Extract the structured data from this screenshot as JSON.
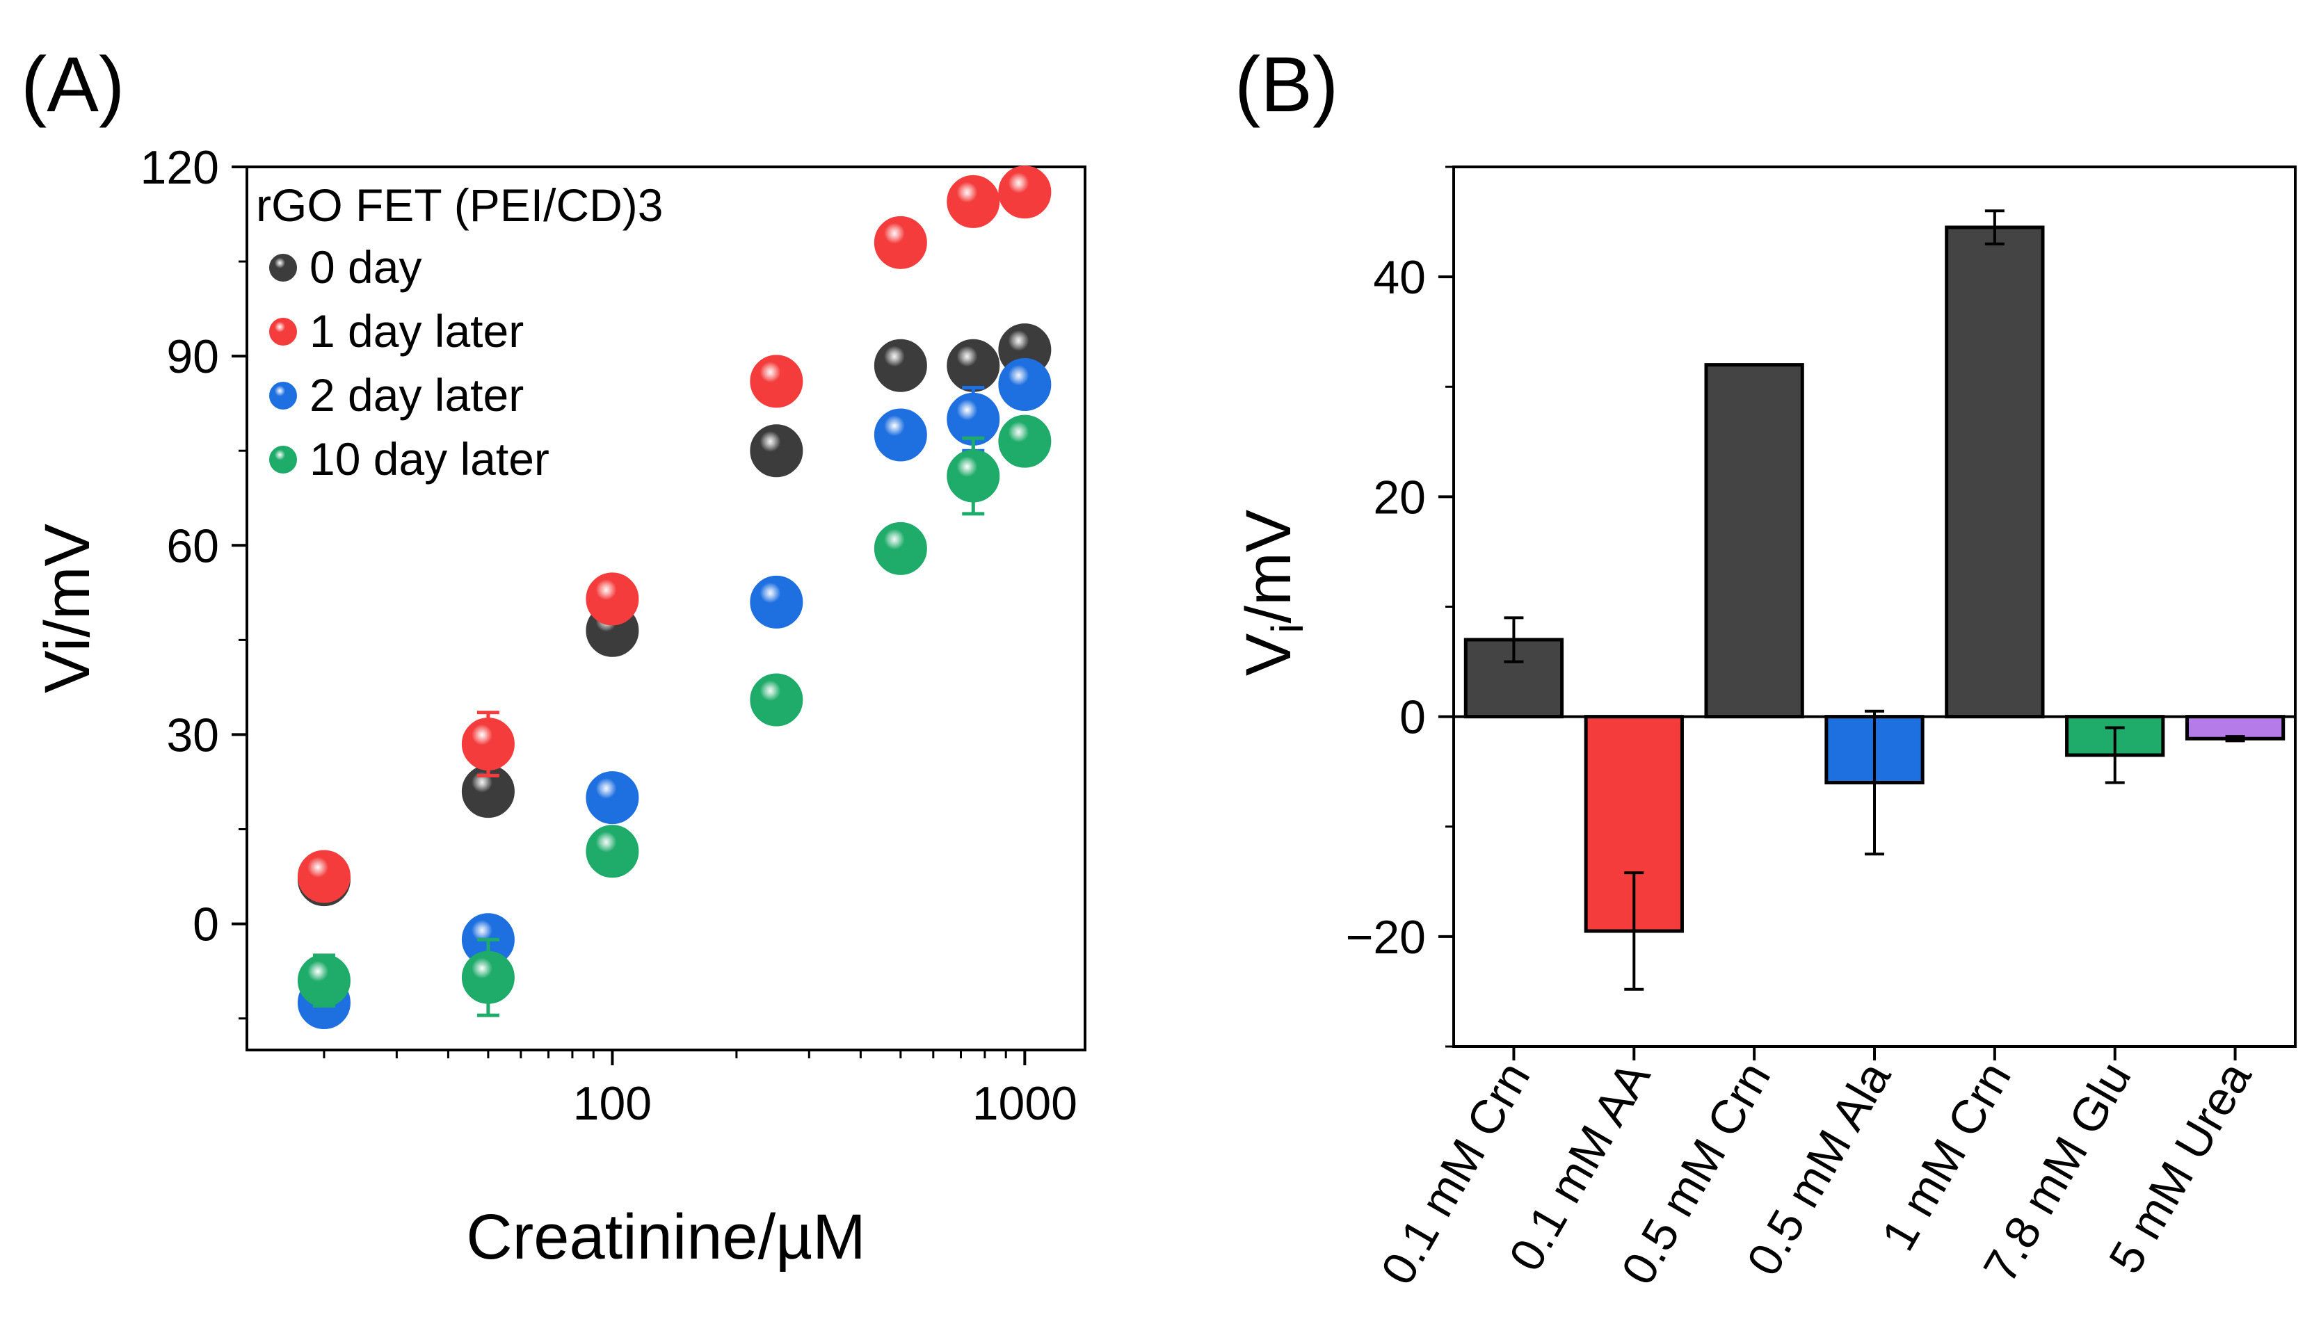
{
  "panel_a": {
    "label": "(A)"
  },
  "panel_b": {
    "label": "(B)"
  },
  "chart_data": [
    {
      "type": "scatter",
      "panel": "(A)",
      "xscale": "log",
      "xlabel": "Creatinine/µM",
      "ylabel": "Vi/mV",
      "xlim": [
        13,
        1400
      ],
      "ylim": [
        -20,
        120
      ],
      "xticks": [
        100,
        1000
      ],
      "xtick_labels": [
        "100",
        "1000"
      ],
      "yticks": [
        0,
        30,
        60,
        90,
        120
      ],
      "ytick_labels": [
        "0",
        "30",
        "60",
        "90",
        "120"
      ],
      "legend_title": "rGO FET (PEI/CD)3",
      "legend_position": "top-left",
      "series": [
        {
          "name": "0 day",
          "color": "#3c3c3c",
          "x": [
            20,
            50,
            100,
            250,
            500,
            750,
            1000
          ],
          "y": [
            7,
            21,
            46.5,
            75,
            88.5,
            88.5,
            91
          ],
          "err": [
            1,
            1.5,
            1.5,
            1.5,
            1.5,
            1.5,
            1.5
          ]
        },
        {
          "name": "1 day later",
          "color": "#f43c3c",
          "x": [
            20,
            50,
            100,
            250,
            500,
            750,
            1000
          ],
          "y": [
            7.5,
            28.5,
            51.5,
            86,
            108,
            114.5,
            116
          ],
          "err": [
            1,
            5,
            1.5,
            1.5,
            1.5,
            1.5,
            1.5
          ]
        },
        {
          "name": "2 day later",
          "color": "#1e6fe0",
          "x": [
            20,
            50,
            100,
            250,
            500,
            750,
            1000
          ],
          "y": [
            -12.5,
            -2.5,
            20,
            51,
            77.5,
            80,
            85.5
          ],
          "err": [
            1,
            1.5,
            1.5,
            1.5,
            2,
            5,
            1.5
          ]
        },
        {
          "name": "10 day later",
          "color": "#1fab6a",
          "x": [
            20,
            50,
            100,
            250,
            500,
            750,
            1000
          ],
          "y": [
            -9,
            -8.5,
            11.5,
            35.5,
            59.5,
            71,
            76.5
          ],
          "err": [
            4,
            6,
            1.5,
            1.5,
            1.5,
            6,
            1.5
          ]
        }
      ]
    },
    {
      "type": "bar",
      "panel": "(B)",
      "ylabel_main": "V",
      "ylabel_sub": "i",
      "ylabel_rest": "/mV",
      "ylim": [
        -30,
        50
      ],
      "yticks": [
        -20,
        0,
        20,
        40
      ],
      "ytick_labels": [
        "−20",
        "0",
        "20",
        "40"
      ],
      "categories": [
        "0.1 mM Crn",
        "0.1 mM AA",
        "0.5 mM Crn",
        "0.5 mM Ala",
        "1 mM Crn",
        "7.8 mM Glu",
        "5 mM Urea"
      ],
      "values": [
        7,
        -19.5,
        32,
        -6,
        44.5,
        -3.5,
        -2
      ],
      "errors": [
        2,
        5.3,
        0,
        6.5,
        1.5,
        2.5,
        0.2
      ],
      "colors": [
        "#444444",
        "#f43c3c",
        "#444444",
        "#1e6fe0",
        "#444444",
        "#1fab6a",
        "#b57be8"
      ]
    }
  ]
}
